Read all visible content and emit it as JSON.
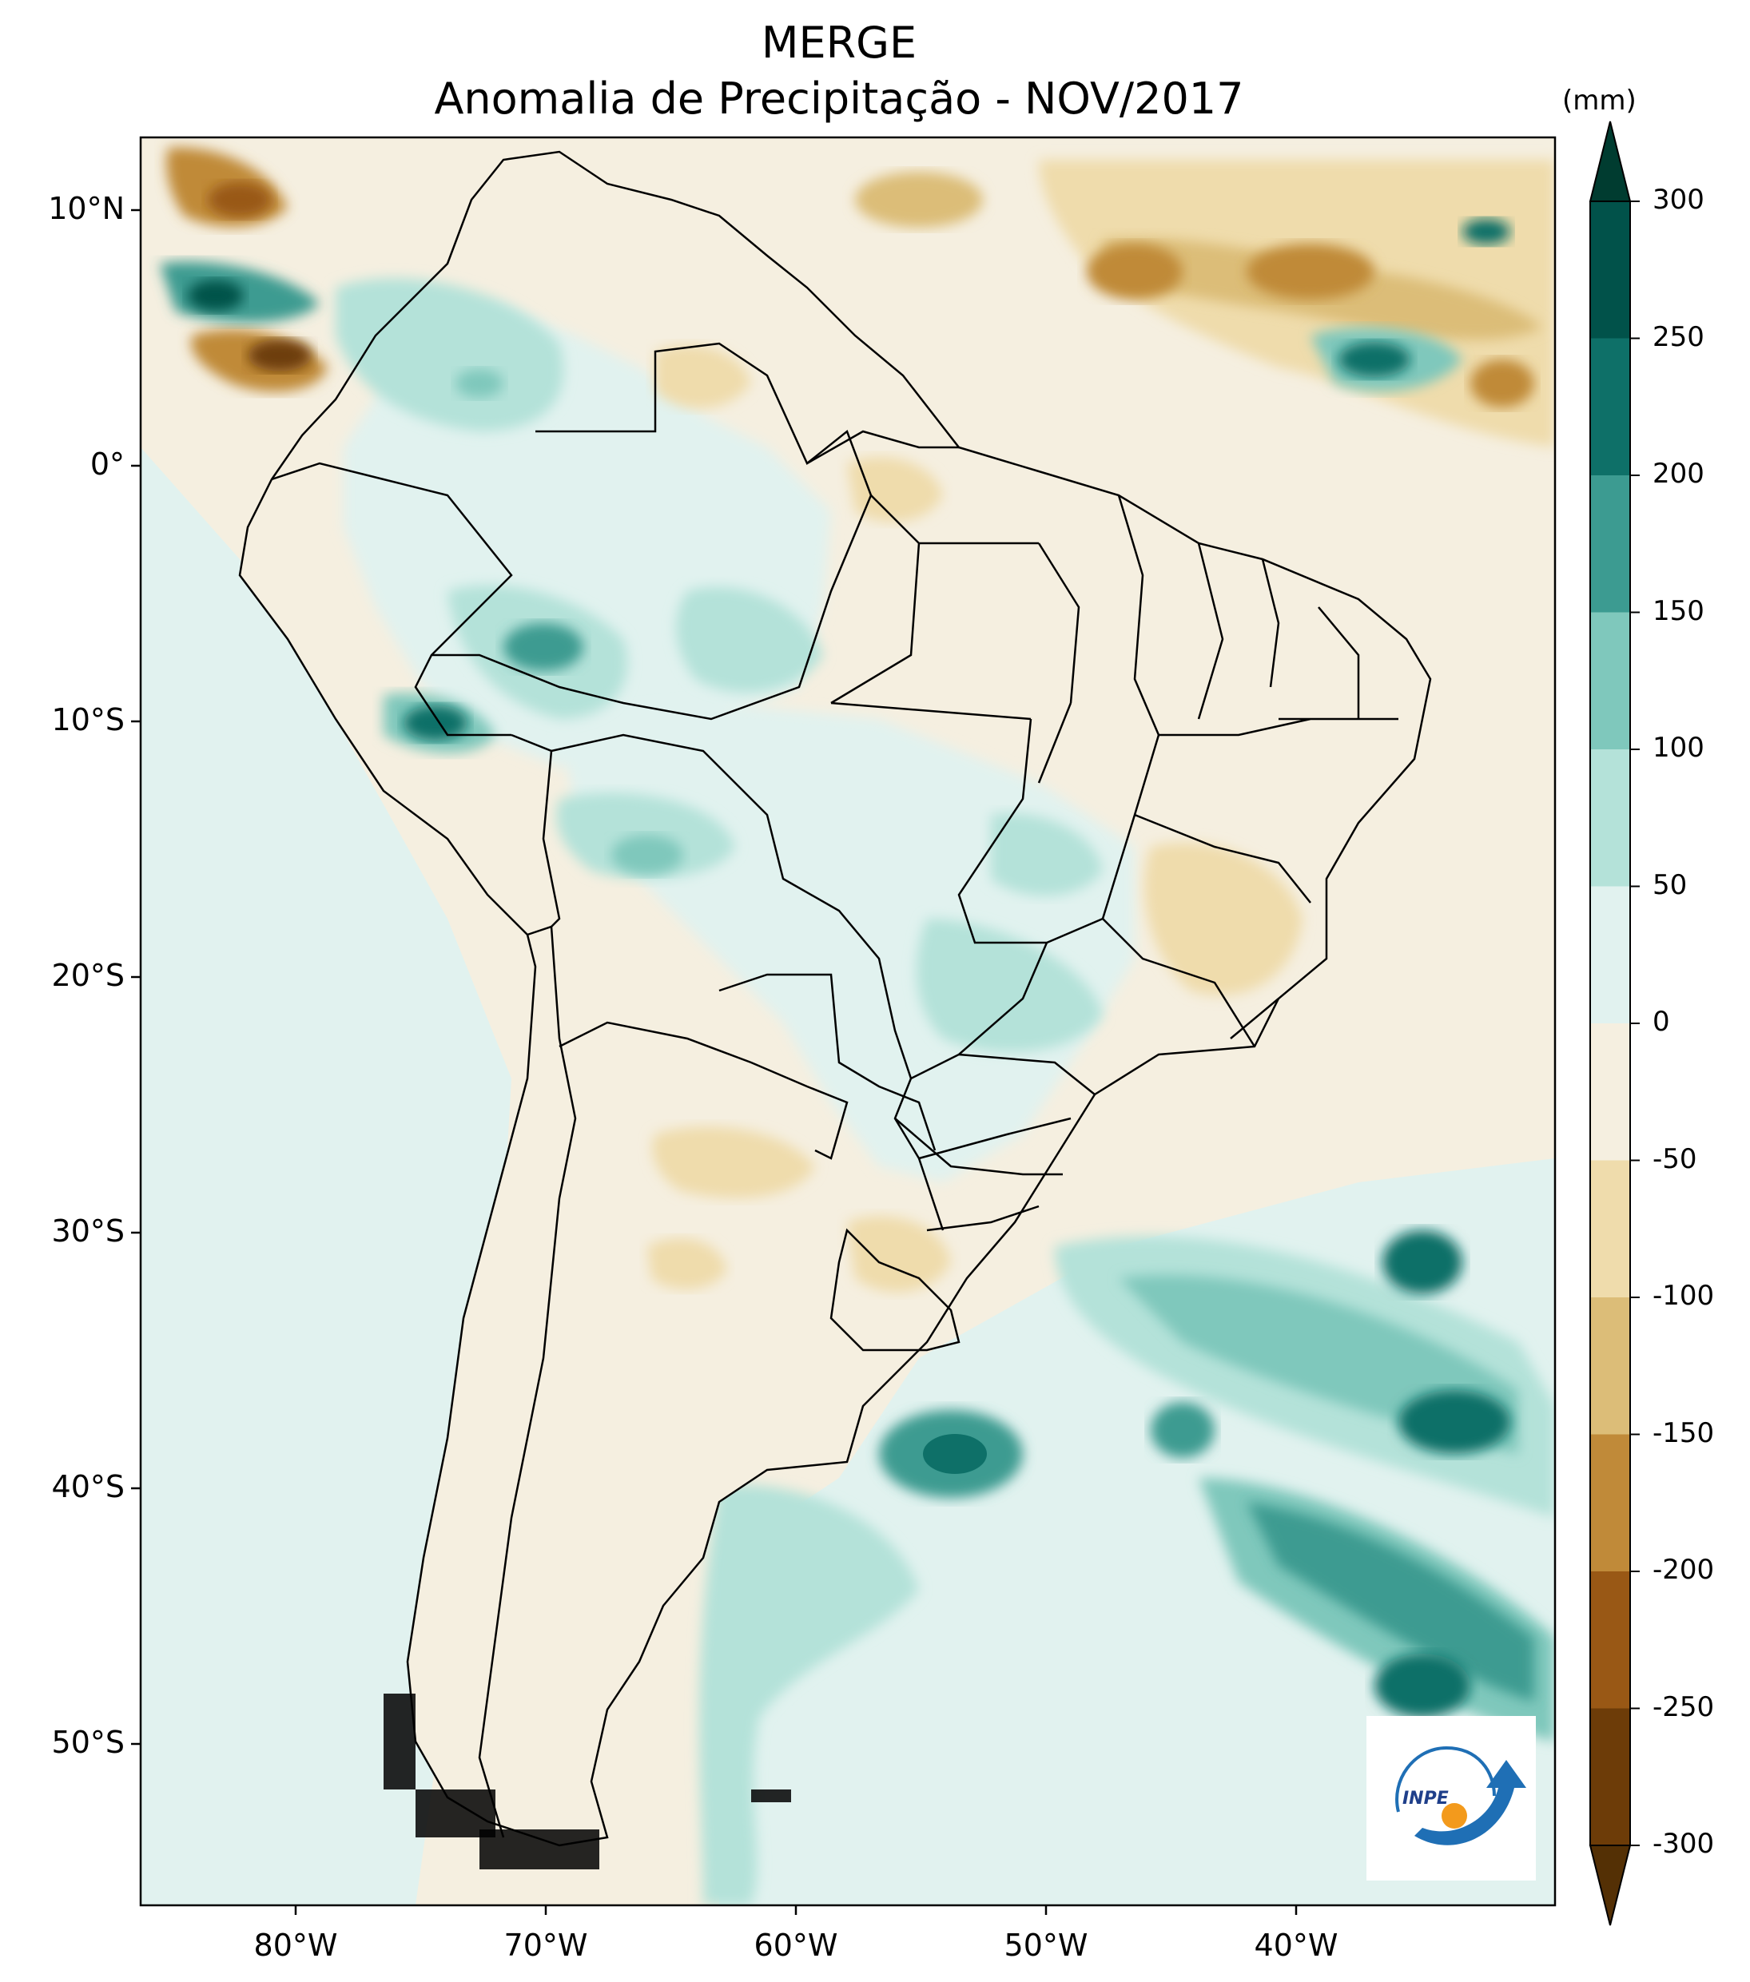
{
  "title": "MERGE",
  "subtitle": "Anomalia de Precipitação - NOV/2017",
  "units": "(mm)",
  "lat_ticks": [
    {
      "label": "10°N",
      "value": 10
    },
    {
      "label": "0°",
      "value": 0
    },
    {
      "label": "10°S",
      "value": -10
    },
    {
      "label": "20°S",
      "value": -20
    },
    {
      "label": "30°S",
      "value": -30
    },
    {
      "label": "40°S",
      "value": -40
    },
    {
      "label": "50°S",
      "value": -50
    }
  ],
  "lon_ticks": [
    {
      "label": "80°W",
      "value": -80
    },
    {
      "label": "70°W",
      "value": -70
    },
    {
      "label": "60°W",
      "value": -60
    },
    {
      "label": "50°W",
      "value": -50
    },
    {
      "label": "40°W",
      "value": -40
    }
  ],
  "colorbar": [
    {
      "label": "300",
      "value": 300
    },
    {
      "label": "250",
      "value": 250
    },
    {
      "label": "200",
      "value": 200
    },
    {
      "label": "150",
      "value": 150
    },
    {
      "label": "100",
      "value": 100
    },
    {
      "label": "50",
      "value": 50
    },
    {
      "label": "0",
      "value": 0
    },
    {
      "label": "-50",
      "value": -50
    },
    {
      "label": "-100",
      "value": -100
    },
    {
      "label": "-150",
      "value": -150
    },
    {
      "label": "-200",
      "value": -200
    },
    {
      "label": "-250",
      "value": -250
    },
    {
      "label": "-300",
      "value": -300
    }
  ],
  "colors": {
    "c_300_plus": "#003c30",
    "c_250_300": "#01524a",
    "c_200_250": "#0e7068",
    "c_150_200": "#3c9b91",
    "c_100_150": "#7fc8bc",
    "c_50_100": "#b4e2d9",
    "c_0_50": "#e1f2ef",
    "c_m50_0": "#f5efe0",
    "c_m100_m50": "#efdcac",
    "c_m150_m100": "#dcbd78",
    "c_m200_m150": "#c08a39",
    "c_m250_m200": "#995815",
    "c_m300_m250": "#6d3c08",
    "c_below_m300": "#543005"
  },
  "logo_text": "INPE"
}
